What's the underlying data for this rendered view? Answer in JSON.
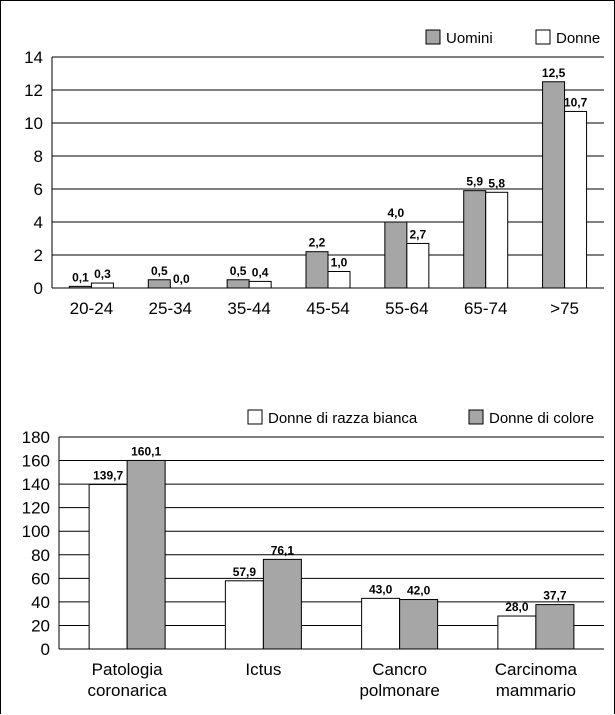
{
  "chart_data": [
    {
      "type": "bar",
      "categories": [
        "20-24",
        "25-34",
        "35-44",
        "45-54",
        "55-64",
        "65-74",
        ">75"
      ],
      "series": [
        {
          "name": "Uomini",
          "values": [
            0.1,
            0.5,
            0.5,
            2.2,
            4.0,
            5.9,
            12.5
          ],
          "labels": [
            "0,1",
            "0,5",
            "0,5",
            "2,2",
            "4,0",
            "5,9",
            "12,5"
          ],
          "color": "#a6a6a6"
        },
        {
          "name": "Donne",
          "values": [
            0.3,
            0.0,
            0.4,
            1.0,
            2.7,
            5.8,
            10.7
          ],
          "labels": [
            "0,3",
            "0,0",
            "0,4",
            "1,0",
            "2,7",
            "5,8",
            "10,7"
          ],
          "color": "#ffffff"
        }
      ],
      "ylim": [
        0,
        14
      ],
      "yticks": [
        "0",
        "2",
        "4",
        "6",
        "8",
        "10",
        "12",
        "14"
      ],
      "grid": true,
      "legend": "top-right"
    },
    {
      "type": "bar",
      "categories": [
        "Patologia\ncoronarica",
        "Ictus",
        "Cancro\npolmonare",
        "Carcinoma\nmammario"
      ],
      "series": [
        {
          "name": "Donne di razza bianca",
          "values": [
            139.7,
            57.9,
            43.0,
            28.0
          ],
          "labels": [
            "139,7",
            "57,9",
            "43,0",
            "28,0"
          ],
          "color": "#ffffff"
        },
        {
          "name": "Donne di colore",
          "values": [
            160.1,
            76.1,
            42.0,
            37.7
          ],
          "labels": [
            "160,1",
            "76,1",
            "42,0",
            "37,7"
          ],
          "color": "#a6a6a6"
        }
      ],
      "ylim": [
        0,
        180
      ],
      "yticks": [
        "0",
        "20",
        "40",
        "60",
        "80",
        "100",
        "120",
        "140",
        "160",
        "180"
      ],
      "grid": true,
      "legend": "top-right"
    }
  ]
}
